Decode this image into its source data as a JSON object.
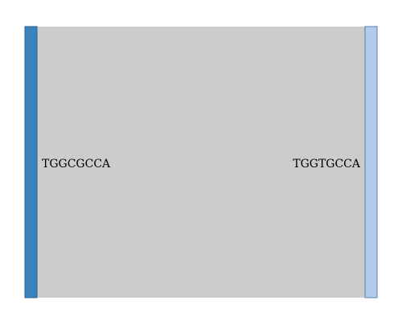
{
  "diagram": {
    "type": "sankey",
    "nodes": [
      {
        "id": "left",
        "label": "TGGCGCCA",
        "color": "#3a83bd"
      },
      {
        "id": "right",
        "label": "TGGTGCCA",
        "color": "#b3cde8"
      }
    ],
    "links": [
      {
        "source": "TGGCGCCA",
        "target": "TGGTGCCA",
        "color": "#cccccc"
      }
    ]
  }
}
